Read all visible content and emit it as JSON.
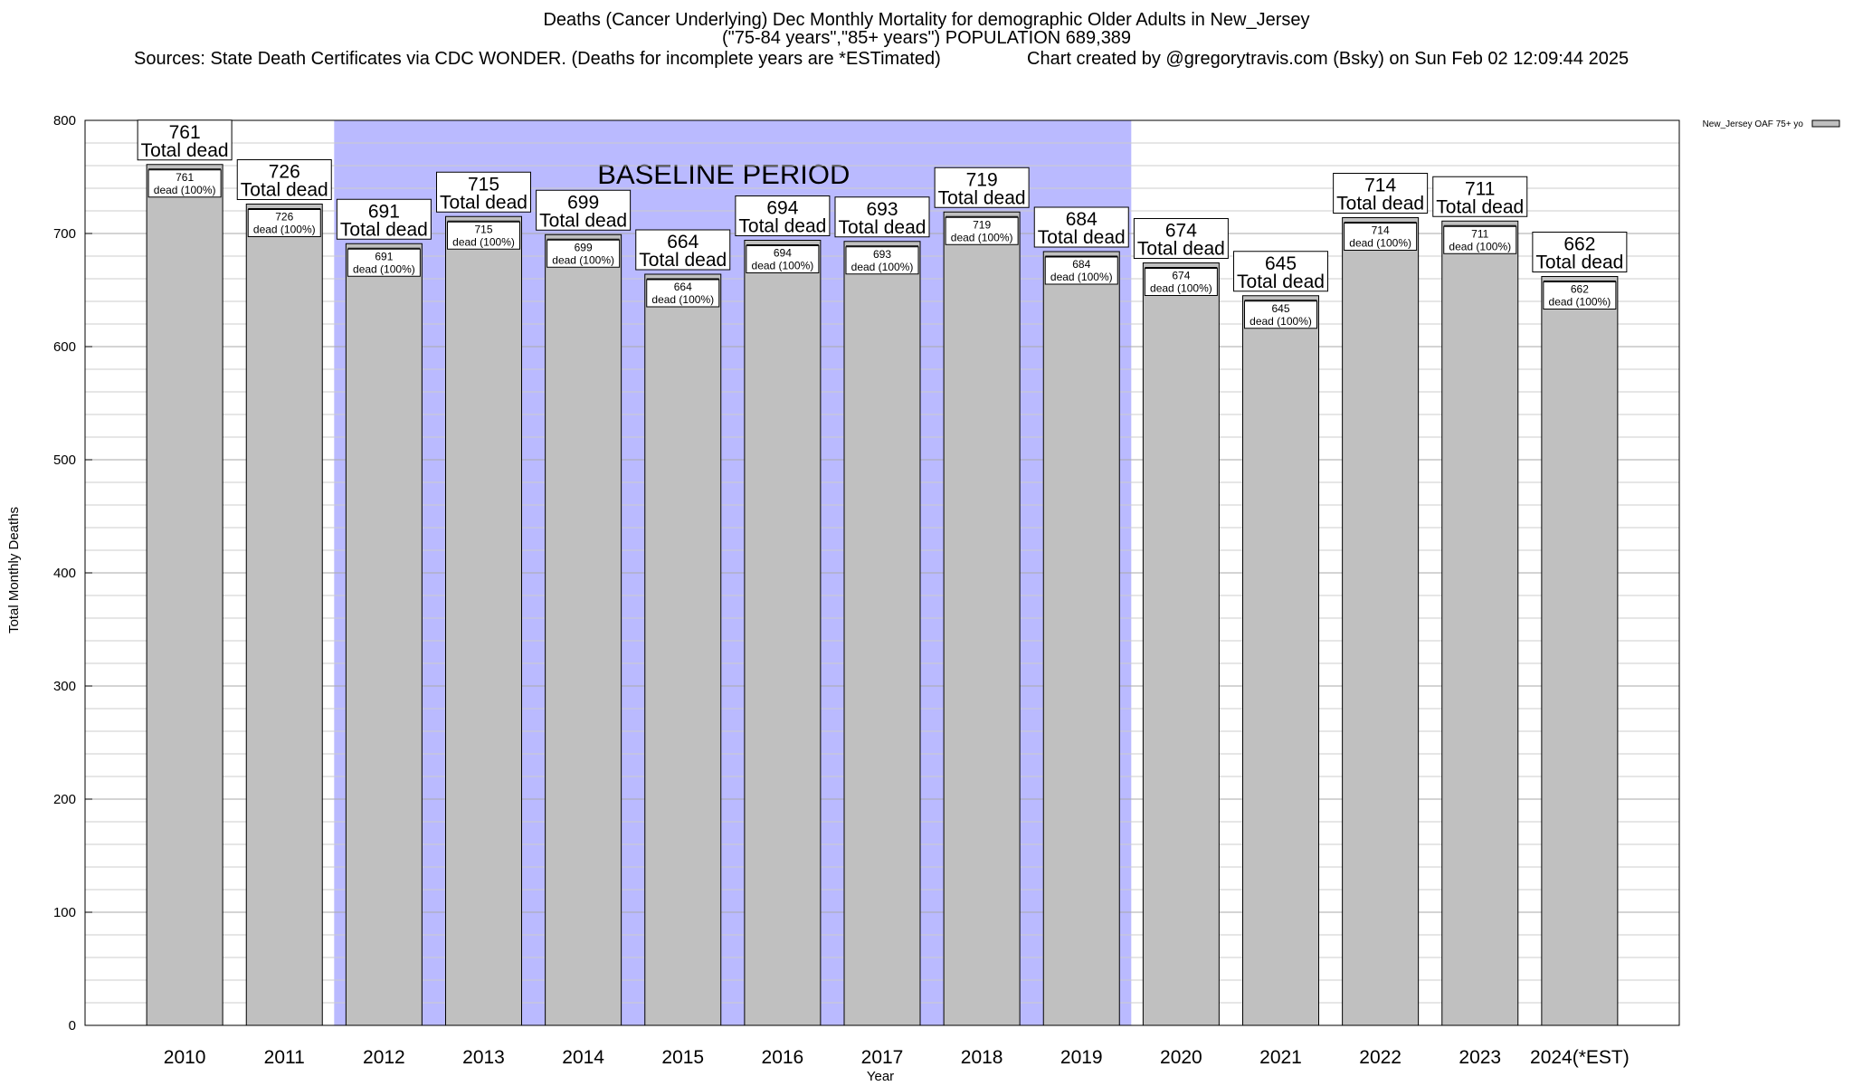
{
  "chart_data": {
    "type": "bar",
    "title": "Deaths (Cancer Underlying) Dec Monthly Mortality for demographic Older Adults in New_Jersey",
    "subtitle": "(\"75-84 years\",\"85+ years\") POPULATION 689,389",
    "sources": "Sources: State Death Certificates via CDC WONDER. (Deaths for incomplete years are *ESTimated)",
    "credit": "Chart created by @gregorytravis.com (Bsky) on Sun Feb 02 12:09:44 2025",
    "xlabel": "Year",
    "ylabel": "Total Monthly Deaths",
    "ylim": [
      0,
      800
    ],
    "yticks": [
      0,
      100,
      200,
      300,
      400,
      500,
      600,
      700,
      800
    ],
    "grid": true,
    "categories": [
      "2010",
      "2011",
      "2012",
      "2013",
      "2014",
      "2015",
      "2016",
      "2017",
      "2018",
      "2019",
      "2020",
      "2021",
      "2022",
      "2023",
      "2024(*EST)"
    ],
    "series": [
      {
        "name": "New_Jersey OAF 75+ yo",
        "values": [
          761,
          726,
          691,
          715,
          699,
          664,
          694,
          693,
          719,
          684,
          674,
          645,
          714,
          711,
          662
        ],
        "color": "#c0c0c0"
      }
    ],
    "total_label": "Total dead",
    "inner_label": "dead (100%)",
    "baseline": {
      "label": "BASELINE PERIOD",
      "start": "2012",
      "end": "2019",
      "color": "#babaff"
    },
    "legend_position": "top-right"
  }
}
